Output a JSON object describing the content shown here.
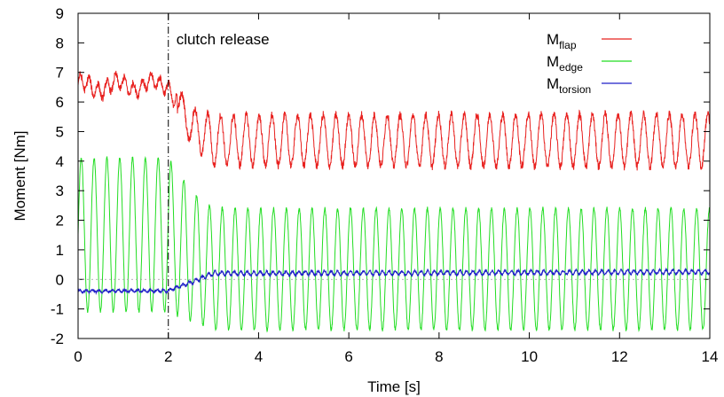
{
  "chart_data": {
    "type": "line",
    "xlabel": "Time [s]",
    "ylabel": "Moment [Nm]",
    "xlim": [
      0,
      14
    ],
    "ylim": [
      -2,
      9
    ],
    "xticks": [
      "0",
      "2",
      "4",
      "6",
      "8",
      "10",
      "12",
      "14"
    ],
    "yticks": [
      "-2",
      "-1",
      "0",
      "1",
      "2",
      "3",
      "4",
      "5",
      "6",
      "7",
      "8",
      "9"
    ],
    "grid": false,
    "legend_position": "top-right",
    "annotations": [
      {
        "text": "clutch release",
        "x": 2.0,
        "style": "dash-dot vertical line"
      }
    ],
    "series": [
      {
        "name": "M",
        "subscript": "flap",
        "color": "#e8201e",
        "description_points": {
          "t": [
            0.0,
            2.0,
            2.5,
            3.0,
            14.0
          ],
          "mean": [
            6.5,
            6.6,
            5.2,
            4.7,
            4.7
          ],
          "amplitude": [
            0.45,
            0.35,
            0.6,
            0.85,
            0.9
          ]
        }
      },
      {
        "name": "M",
        "subscript": "edge",
        "color": "#22dd22",
        "description_points": {
          "t": [
            0.0,
            2.0,
            2.5,
            3.0,
            14.0
          ],
          "mean": [
            1.5,
            1.5,
            0.8,
            0.35,
            0.35
          ],
          "amplitude": [
            2.6,
            2.6,
            2.2,
            2.05,
            2.05
          ]
        }
      },
      {
        "name": "M",
        "subscript": "torsion",
        "color": "#1f1fc8",
        "description_points": {
          "t": [
            0.0,
            2.0,
            2.5,
            3.0,
            14.0
          ],
          "mean": [
            -0.4,
            -0.38,
            -0.1,
            0.2,
            0.25
          ],
          "amplitude": [
            0.04,
            0.04,
            0.06,
            0.07,
            0.07
          ]
        }
      }
    ]
  }
}
